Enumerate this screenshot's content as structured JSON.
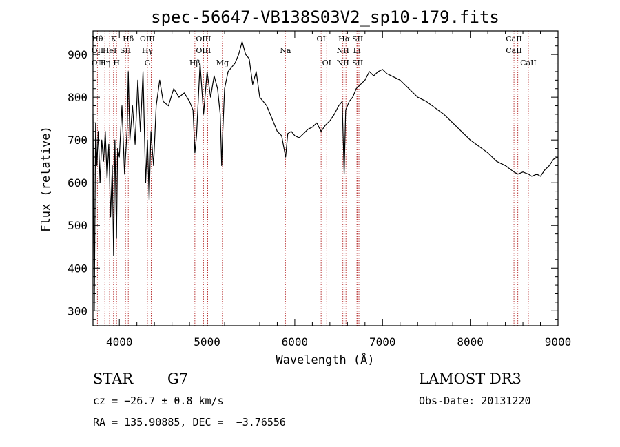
{
  "colors": {
    "spectrum": "#000000",
    "line_marker": "#b22222",
    "axis": "#000000"
  },
  "chart_data": {
    "type": "line",
    "title": "spec-56647-VB138S03V2_sp10-179.fits",
    "xlabel": "Wavelength (Å)",
    "ylabel": "Flux (relative)",
    "xlim": [
      3700,
      9000
    ],
    "ylim": [
      265,
      955
    ],
    "xticks": [
      4000,
      5000,
      6000,
      7000,
      8000,
      9000
    ],
    "yticks": [
      300,
      400,
      500,
      600,
      700,
      800,
      900
    ],
    "grid": false,
    "series": [
      {
        "name": "spectrum",
        "x": [
          3700,
          3715,
          3730,
          3745,
          3760,
          3780,
          3800,
          3820,
          3840,
          3860,
          3880,
          3900,
          3920,
          3935,
          3950,
          3968,
          3980,
          4000,
          4030,
          4060,
          4090,
          4102,
          4120,
          4150,
          4180,
          4210,
          4240,
          4270,
          4300,
          4320,
          4340,
          4360,
          4390,
          4420,
          4460,
          4500,
          4560,
          4620,
          4680,
          4740,
          4800,
          4840,
          4861,
          4880,
          4920,
          4960,
          5000,
          5040,
          5080,
          5120,
          5150,
          5167,
          5175,
          5200,
          5240,
          5280,
          5320,
          5360,
          5400,
          5440,
          5480,
          5520,
          5560,
          5600,
          5640,
          5680,
          5720,
          5760,
          5800,
          5850,
          5895,
          5920,
          5960,
          6000,
          6050,
          6100,
          6150,
          6200,
          6250,
          6300,
          6350,
          6400,
          6450,
          6500,
          6540,
          6563,
          6580,
          6620,
          6660,
          6700,
          6750,
          6800,
          6850,
          6900,
          6950,
          7000,
          7050,
          7100,
          7150,
          7200,
          7300,
          7400,
          7500,
          7600,
          7700,
          7800,
          7900,
          8000,
          8100,
          8200,
          8300,
          8400,
          8498,
          8542,
          8600,
          8662,
          8700,
          8760,
          8800,
          8850,
          8900,
          8950,
          9000
        ],
        "values": [
          760,
          300,
          740,
          640,
          720,
          600,
          700,
          650,
          720,
          610,
          690,
          520,
          640,
          430,
          700,
          470,
          680,
          660,
          780,
          620,
          730,
          860,
          700,
          780,
          690,
          840,
          720,
          860,
          600,
          700,
          560,
          720,
          640,
          780,
          840,
          790,
          780,
          820,
          800,
          810,
          790,
          770,
          670,
          710,
          880,
          760,
          860,
          800,
          850,
          820,
          760,
          640,
          700,
          820,
          860,
          870,
          880,
          900,
          930,
          900,
          890,
          830,
          860,
          800,
          790,
          780,
          760,
          740,
          720,
          710,
          660,
          715,
          720,
          710,
          705,
          715,
          725,
          730,
          740,
          720,
          735,
          745,
          760,
          780,
          790,
          620,
          770,
          790,
          800,
          820,
          830,
          840,
          860,
          850,
          860,
          865,
          855,
          850,
          845,
          840,
          820,
          800,
          790,
          775,
          760,
          740,
          720,
          700,
          685,
          670,
          650,
          640,
          625,
          620,
          625,
          620,
          615,
          620,
          615,
          630,
          640,
          655,
          660
        ]
      }
    ],
    "lines": [
      {
        "wl": 3750,
        "top": "Hθ",
        "mid": "OII",
        "low": "OII"
      },
      {
        "wl": 3835,
        "top": "",
        "mid": "",
        "low": "Hη"
      },
      {
        "wl": 3889,
        "top": "",
        "mid": "HeI",
        "low": ""
      },
      {
        "wl": 3934,
        "top": "K",
        "mid": "",
        "low": ""
      },
      {
        "wl": 3968,
        "top": "",
        "mid": "",
        "low": "H"
      },
      {
        "wl": 4070,
        "top": "",
        "mid": "SII",
        "low": ""
      },
      {
        "wl": 4102,
        "top": "Hδ",
        "mid": "",
        "low": ""
      },
      {
        "wl": 4320,
        "top": "OIII",
        "mid": "Hγ",
        "low": "G"
      },
      {
        "wl": 4363,
        "top": "",
        "mid": "",
        "low": ""
      },
      {
        "wl": 4861,
        "top": "",
        "mid": "",
        "low": "Hβ"
      },
      {
        "wl": 4959,
        "top": "OIII",
        "mid": "OIII",
        "low": ""
      },
      {
        "wl": 5007,
        "top": "",
        "mid": "",
        "low": ""
      },
      {
        "wl": 5175,
        "top": "",
        "mid": "",
        "low": "Mg"
      },
      {
        "wl": 5893,
        "top": "",
        "mid": "Na",
        "low": ""
      },
      {
        "wl": 6300,
        "top": "OI",
        "mid": "",
        "low": ""
      },
      {
        "wl": 6364,
        "top": "",
        "mid": "",
        "low": "OI"
      },
      {
        "wl": 6548,
        "top": "",
        "mid": "NII",
        "low": "NII"
      },
      {
        "wl": 6563,
        "top": "Hα",
        "mid": "",
        "low": ""
      },
      {
        "wl": 6583,
        "top": "",
        "mid": "",
        "low": ""
      },
      {
        "wl": 6708,
        "top": "",
        "mid": "Li",
        "low": ""
      },
      {
        "wl": 6716,
        "top": "SII",
        "mid": "",
        "low": "SII"
      },
      {
        "wl": 6731,
        "top": "",
        "mid": "",
        "low": ""
      },
      {
        "wl": 8498,
        "top": "CaII",
        "mid": "CaII",
        "low": ""
      },
      {
        "wl": 8542,
        "top": "",
        "mid": "",
        "low": ""
      },
      {
        "wl": 8662,
        "top": "",
        "mid": "",
        "low": "CaII"
      }
    ]
  },
  "footer": {
    "object_class": "STAR",
    "subclass": "G7",
    "survey": "LAMOST DR3",
    "cz": "cz = −26.7 ± 0.8 km/s",
    "obs_date": "Obs-Date: 20131220",
    "coords": "RA = 135.90885, DEC =  −3.76556"
  }
}
